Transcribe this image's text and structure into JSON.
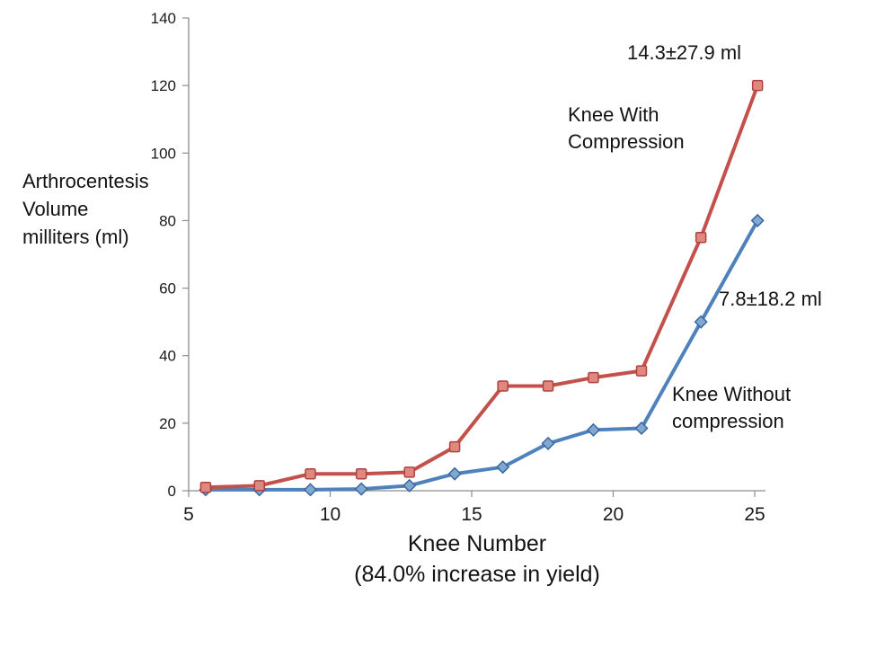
{
  "chart_data": {
    "type": "line",
    "title": "",
    "x": [
      5.6,
      7.5,
      9.3,
      11.1,
      12.8,
      14.4,
      16.1,
      17.7,
      19.3,
      21.0,
      23.1,
      25.1
    ],
    "series": [
      {
        "id": "without-compression",
        "name": "Knee Without compression",
        "values": [
          0.3,
          0.3,
          0.3,
          0.5,
          1.5,
          5,
          7,
          14,
          18,
          18.5,
          50,
          80
        ],
        "color": "#4F81BD",
        "marker": "diamond",
        "marker_fill": "#7FA9D3",
        "marker_stroke": "#3A679C"
      },
      {
        "id": "with-compression",
        "name": "Knee With Compression",
        "values": [
          1,
          1.5,
          5,
          5,
          5.5,
          13,
          31,
          31,
          33.5,
          35.5,
          75,
          120
        ],
        "color": "#C4504B",
        "marker": "square",
        "marker_fill": "#E08780",
        "marker_stroke": "#AE423E"
      }
    ],
    "xlabel": "Knee Number",
    "xlabel_subtitle": "(84.0% increase in yield)",
    "ylabel": "Arthrocentesis Volume milliters (ml)",
    "xlim": [
      5,
      25.5
    ],
    "ylim": [
      0,
      140
    ],
    "x_ticks": [
      5,
      10,
      15,
      20,
      25
    ],
    "y_ticks": [
      0,
      20,
      40,
      60,
      80,
      100,
      120,
      140
    ],
    "grid": false,
    "legend_position": "inline-annotations"
  },
  "axis": {
    "y_title_line1": "Arthrocentesis",
    "y_title_line2": "Volume",
    "y_title_line3": "milliters (ml)",
    "x_title": "Knee Number",
    "x_subtitle": "(84.0% increase in yield)"
  },
  "annotations": {
    "with_compression_stat": "14.3±27.9 ml",
    "with_compression_label_line1": "Knee With",
    "with_compression_label_line2": "Compression",
    "without_compression_stat": "7.8±18.2 ml",
    "without_compression_label_line1": "Knee Without",
    "without_compression_label_line2": "compression"
  }
}
